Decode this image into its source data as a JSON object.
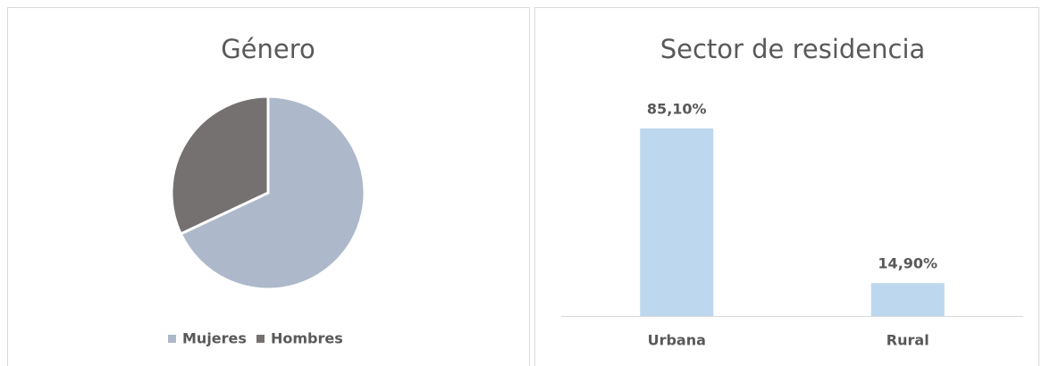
{
  "chart_data": [
    {
      "type": "pie",
      "title": "Género",
      "categories": [
        "Mujeres",
        "Hombres"
      ],
      "values": [
        68,
        32
      ],
      "colors": [
        "#adb9ca",
        "#767171"
      ],
      "legend": "bottom"
    },
    {
      "type": "bar",
      "title": "Sector de residencia",
      "categories": [
        "Urbana",
        "Rural"
      ],
      "values": [
        85.1,
        14.9
      ],
      "value_labels": [
        "85,10%",
        "14,90%"
      ],
      "color": "#bdd7ee",
      "ylim": [
        0,
        100
      ]
    }
  ]
}
